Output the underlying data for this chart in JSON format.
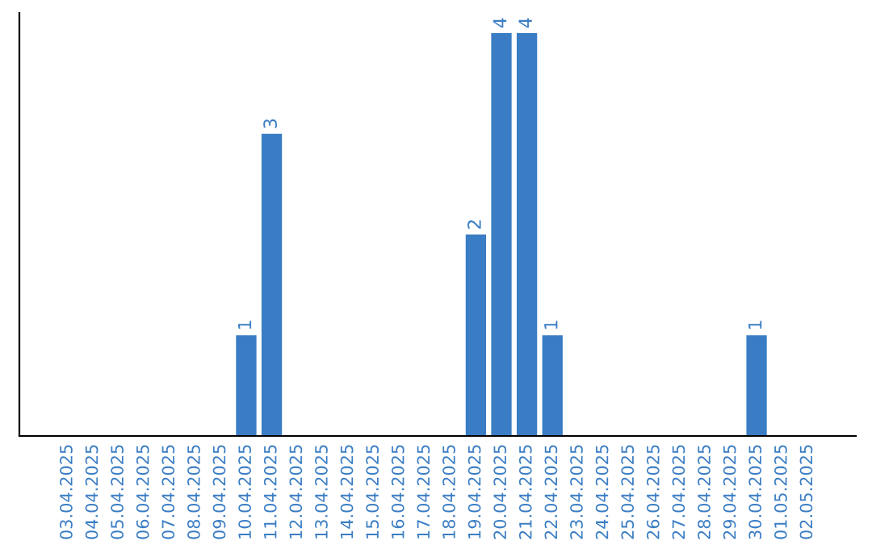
{
  "chart_data": {
    "type": "bar",
    "categories": [
      "03.04.2025",
      "04.04.2025",
      "05.04.2025",
      "06.04.2025",
      "07.04.2025",
      "08.04.2025",
      "09.04.2025",
      "10.04.2025",
      "11.04.2025",
      "12.04.2025",
      "13.04.2025",
      "14.04.2025",
      "15.04.2025",
      "16.04.2025",
      "17.04.2025",
      "18.04.2025",
      "19.04.2025",
      "20.04.2025",
      "21.04.2025",
      "22.04.2025",
      "23.04.2025",
      "24.04.2025",
      "25.04.2025",
      "26.04.2025",
      "27.04.2025",
      "28.04.2025",
      "29.04.2025",
      "30.04.2025",
      "01.05.2025",
      "02.05.2025"
    ],
    "values": [
      0,
      0,
      0,
      0,
      0,
      0,
      0,
      1,
      3,
      0,
      0,
      0,
      0,
      0,
      0,
      0,
      2,
      4,
      4,
      1,
      0,
      0,
      0,
      0,
      0,
      0,
      0,
      1,
      0,
      0
    ],
    "value_labels": [
      null,
      null,
      null,
      null,
      null,
      null,
      null,
      "1",
      "3",
      null,
      null,
      null,
      null,
      null,
      null,
      null,
      "2",
      "4",
      "4",
      "1",
      null,
      null,
      null,
      null,
      null,
      null,
      null,
      "1",
      null,
      null
    ],
    "color": "#3a7dc4",
    "tick_labels": "x",
    "grid": false,
    "legend": false
  }
}
